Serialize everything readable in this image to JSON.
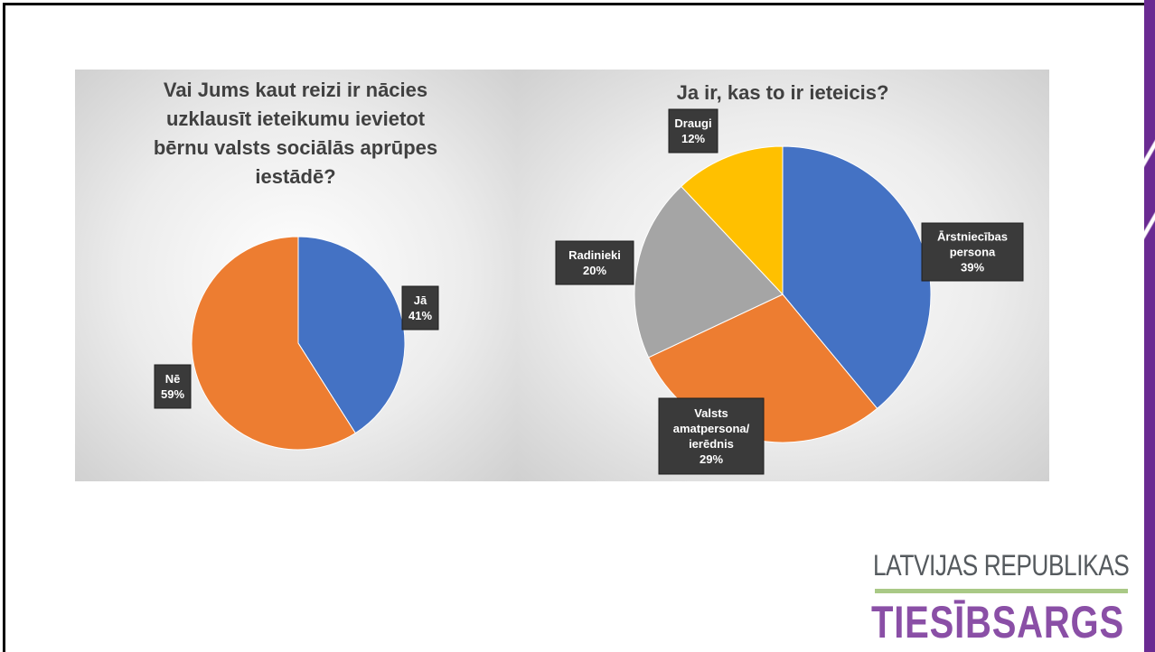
{
  "chart_data": [
    {
      "type": "pie",
      "title": "Vai Jums kaut reizi ir nācies uzklausīt ieteikumu ievietot bērnu valsts sociālās aprūpes iestādē?",
      "title_lines": [
        "Vai Jums kaut reizi ir nācies",
        "uzklausīt ieteikumu ievietot",
        "bērnu valsts sociālās aprūpes",
        "iestādē?"
      ],
      "slices": [
        {
          "label": "Jā",
          "value": 41,
          "value_label": "41%",
          "color": "#4472c4"
        },
        {
          "label": "Nē",
          "value": 59,
          "value_label": "59%",
          "color": "#ed7d31"
        }
      ]
    },
    {
      "type": "pie",
      "title": "Ja ir, kas to ir ieteicis?",
      "title_lines": [
        "Ja ir, kas to ir ieteicis?"
      ],
      "slices": [
        {
          "label": "Ārstniecības persona",
          "label_lines": [
            "Ārstniecības",
            "persona"
          ],
          "value": 39,
          "value_label": "39%",
          "color": "#4472c4"
        },
        {
          "label": "Valsts amatpersona/ ierēdnis",
          "label_lines": [
            "Valsts",
            "amatpersona/",
            "ierēdnis"
          ],
          "value": 29,
          "value_label": "29%",
          "color": "#ed7d31"
        },
        {
          "label": "Radinieki",
          "label_lines": [
            "Radinieki"
          ],
          "value": 20,
          "value_label": "20%",
          "color": "#a5a5a5"
        },
        {
          "label": "Draugi",
          "label_lines": [
            "Draugi"
          ],
          "value": 12,
          "value_label": "12%",
          "color": "#ffc000"
        }
      ]
    }
  ],
  "logo": {
    "line1": "LATVIJAS REPUBLIKAS",
    "line2": "TIESĪBSARGS"
  }
}
